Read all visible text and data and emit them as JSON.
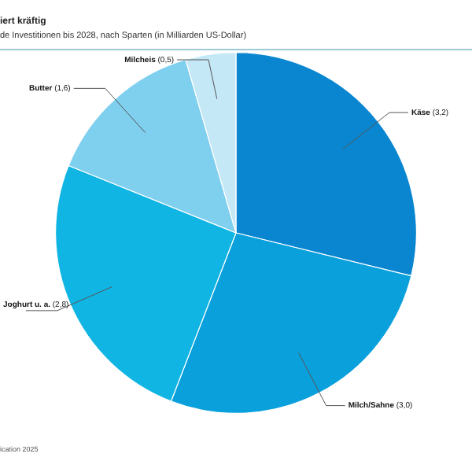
{
  "chart_data": {
    "type": "pie",
    "title": "iert kräftig",
    "subtitle": "de Investitionen bis 2028, nach Sparten (in Milliarden US-Dollar)",
    "categories": [
      "Käse",
      "Milch/Sahne",
      "Joghurt u. a.",
      "Butter",
      "Milcheis"
    ],
    "values": [
      3.2,
      3.0,
      2.8,
      1.6,
      0.5
    ],
    "value_labels": [
      "(3,2)",
      "(3,0)",
      "(2,8)",
      "(1,6)",
      "(0,5)"
    ],
    "colors": [
      "#0a86d0",
      "#0aa0dc",
      "#10b5e4",
      "#7fcfee",
      "#c5e8f7"
    ],
    "annotations": [
      "ication 2025"
    ],
    "legend": false
  }
}
